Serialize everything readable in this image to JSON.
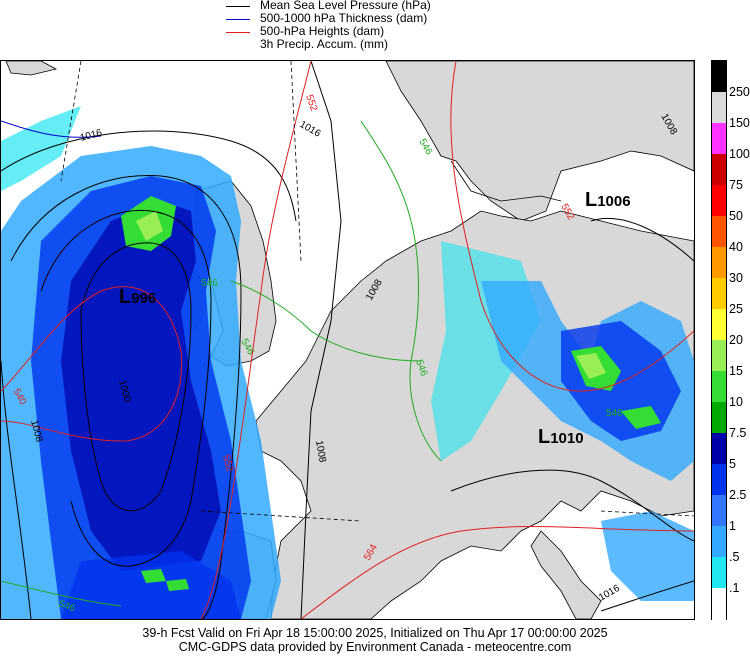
{
  "legend": {
    "items": [
      {
        "label": "Mean Sea Level Pressure (hPa)",
        "color": "#000000"
      },
      {
        "label": "500-1000 hPa Thickness (dam)",
        "color": "#0000cc"
      },
      {
        "label": "500-hPa Heights (dam)",
        "color": "#e02020"
      },
      {
        "label": "3h Precip. Accum. (mm)",
        "color": null
      }
    ]
  },
  "map": {
    "lows": [
      {
        "letter": "L",
        "value": "996"
      },
      {
        "letter": "L",
        "value": "1006"
      },
      {
        "letter": "L",
        "value": "1010"
      }
    ],
    "isobar_labels": [
      "1016",
      "1016",
      "1008",
      "1008",
      "1008",
      "1000",
      "1008",
      "1016"
    ],
    "height_labels": [
      "552",
      "540",
      "552",
      "564",
      "552"
    ],
    "thickness_labels": [
      "546",
      "546",
      "546",
      "546",
      "546",
      "546"
    ]
  },
  "colorbar": {
    "labels": [
      "250",
      "150",
      "100",
      "75",
      "50",
      "40",
      "30",
      "25",
      "20",
      "15",
      "10",
      "7.5",
      "5",
      "2.5",
      "1",
      ".5",
      ".1"
    ],
    "colors": [
      "#000000",
      "#d9d9d9",
      "#ff33ff",
      "#cc0000",
      "#ff0000",
      "#ff5500",
      "#ff9900",
      "#ffcc00",
      "#ffff33",
      "#99ee55",
      "#33dd33",
      "#00aa00",
      "#0000aa",
      "#0033ee",
      "#3377ff",
      "#33aaff",
      "#22e6f0",
      "#ffffff"
    ]
  },
  "footer": {
    "line1": "39-h Fcst Valid on Fri Apr 18 15:00:00 2025, Initialized on Thu Apr 17 00:00:00 2025",
    "line2": "CMC-GDPS data provided by Environment Canada - meteocentre.com"
  }
}
